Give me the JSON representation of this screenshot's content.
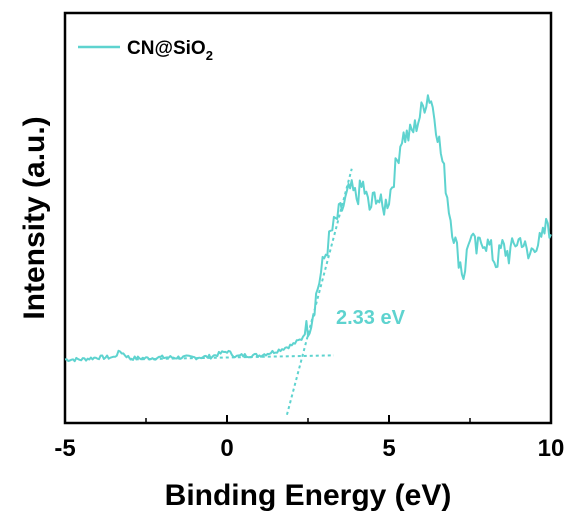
{
  "chart_data": {
    "type": "line",
    "xlabel": "Binding Energy (eV)",
    "ylabel": "Intensity (a.u.)",
    "xlim": [
      -5,
      10
    ],
    "ylim": [
      0,
      10
    ],
    "x_ticks": [
      "-5",
      "0",
      "5",
      "10"
    ],
    "y_ticks_shown": false,
    "grid": false,
    "legend_position": "top-left",
    "series_color": "#5ed3cf",
    "legend": {
      "text": "CN@SiO",
      "subscript": "2"
    },
    "series": [
      {
        "name": "CN@SiO2",
        "x": [
          -5.0,
          -4.5,
          -4.0,
          -3.5,
          -3.3,
          -3.0,
          -2.5,
          -2.0,
          -1.5,
          -1.0,
          -0.5,
          0.0,
          0.3,
          0.5,
          1.0,
          1.5,
          2.0,
          2.3,
          2.6,
          2.8,
          3.0,
          3.2,
          3.4,
          3.6,
          3.8,
          4.0,
          4.2,
          4.4,
          4.6,
          4.8,
          5.0,
          5.2,
          5.4,
          5.6,
          5.8,
          6.0,
          6.2,
          6.3,
          6.5,
          6.7,
          6.9,
          7.1,
          7.3,
          7.5,
          7.7,
          7.9,
          8.1,
          8.3,
          8.5,
          8.7,
          8.9,
          9.1,
          9.3,
          9.5,
          9.7,
          9.9,
          10.0
        ],
        "y": [
          1.55,
          1.55,
          1.6,
          1.6,
          1.75,
          1.58,
          1.58,
          1.6,
          1.6,
          1.6,
          1.62,
          1.75,
          1.62,
          1.65,
          1.65,
          1.75,
          1.9,
          2.05,
          2.5,
          3.3,
          4.0,
          4.6,
          5.0,
          5.3,
          5.7,
          5.5,
          5.8,
          5.2,
          5.6,
          5.2,
          5.5,
          6.2,
          7.0,
          7.0,
          7.2,
          7.6,
          8.0,
          7.9,
          7.1,
          6.1,
          5.0,
          4.2,
          3.6,
          4.6,
          4.2,
          4.5,
          4.3,
          3.9,
          4.3,
          4.1,
          4.4,
          4.5,
          4.0,
          4.4,
          4.4,
          4.9,
          4.6
        ]
      }
    ],
    "annotation": {
      "text": "2.33 eV",
      "baseline_fit": {
        "x": [
          -3.0,
          3.3
        ],
        "y": [
          1.55,
          1.65
        ]
      },
      "edge_fit": {
        "x": [
          1.85,
          3.85
        ],
        "y": [
          0.2,
          6.2
        ]
      }
    }
  }
}
